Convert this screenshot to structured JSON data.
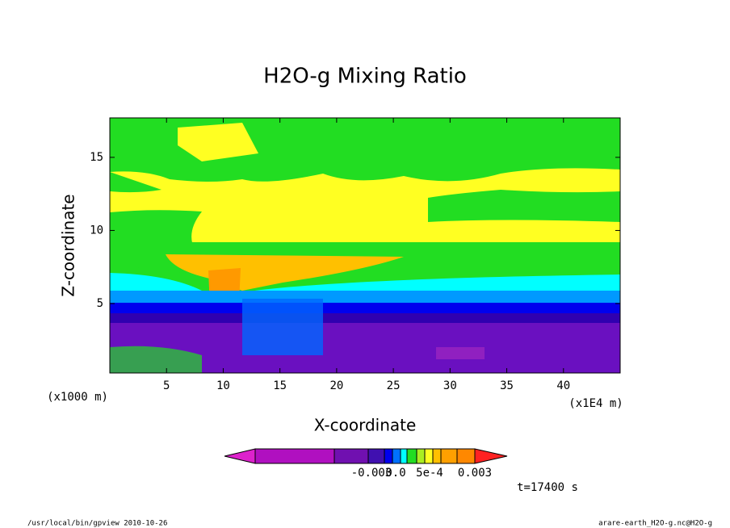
{
  "chart_data": {
    "type": "contour",
    "title": "H2O-g Mixing Ratio",
    "x_label": "X-coordinate",
    "y_label": "Z-coordinate",
    "x_unit": "(x1E4 m)",
    "y_unit": "(x1000 m)",
    "xlim": [
      0,
      45
    ],
    "xticks": [
      5,
      10,
      15,
      20,
      25,
      30,
      35,
      40
    ],
    "ylim": [
      0.25,
      17.7
    ],
    "yticks": [
      5,
      10,
      15
    ],
    "colorbar_labels": [
      "-0.003",
      "0.0",
      "5e-4",
      "0.003"
    ],
    "time_label": "t=17400 s",
    "footer_left": "/usr/local/bin/gpview  2010-10-26",
    "footer_right": "arare-earth_H2O-g.nc@H2O-g"
  }
}
